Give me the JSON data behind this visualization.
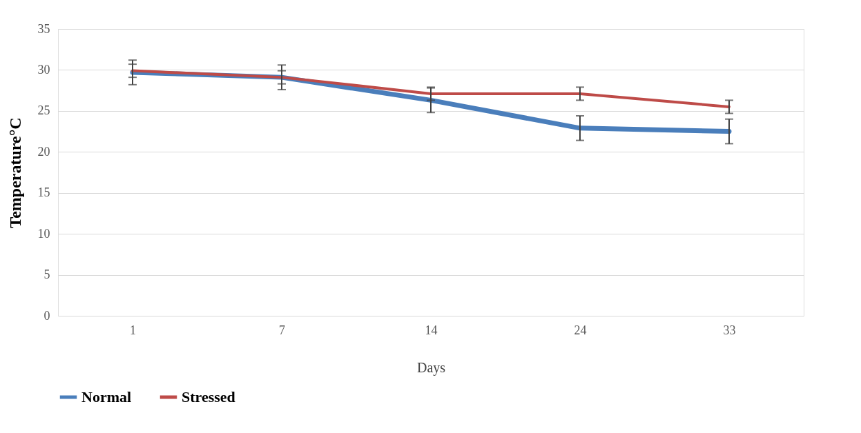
{
  "chart_data": {
    "type": "line",
    "xlabel": "Days",
    "ylabel": "Temperature°C",
    "categories": [
      "1",
      "7",
      "14",
      "24",
      "33"
    ],
    "series": [
      {
        "name": "Normal",
        "color": "#4a7ebb",
        "values": [
          29.7,
          29.1,
          26.3,
          22.9,
          22.5
        ],
        "errors": [
          1.5,
          1.5,
          1.5,
          1.5,
          1.5
        ]
      },
      {
        "name": "Stressed",
        "color": "#be4b48",
        "values": [
          29.9,
          29.1,
          27.1,
          27.1,
          25.5
        ],
        "errors": [
          0.8,
          0.8,
          0.8,
          0.8,
          0.8
        ]
      }
    ],
    "ylim": [
      0,
      35
    ],
    "yticks": [
      0,
      5,
      10,
      15,
      20,
      25,
      30,
      35
    ],
    "grid": "y",
    "legend": "bottom",
    "marker": "none",
    "line_style": "solid"
  }
}
